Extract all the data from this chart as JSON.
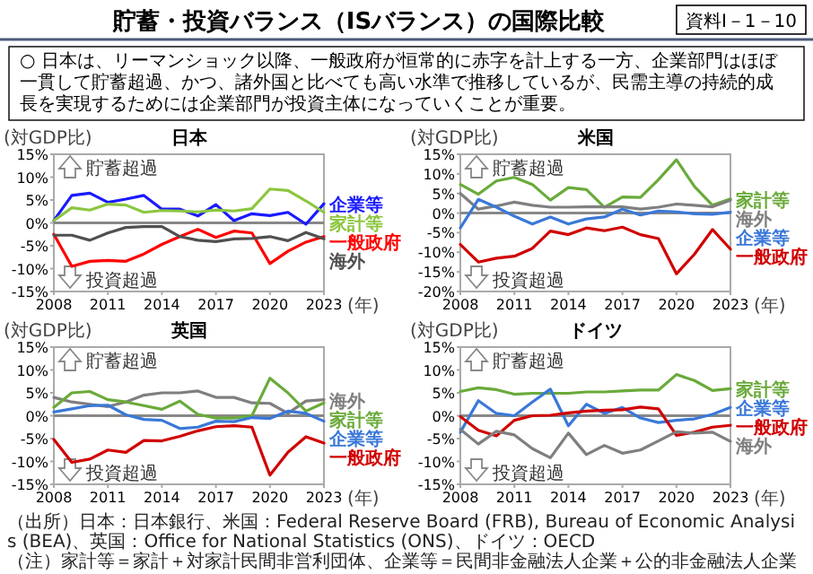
{
  "chart_data": [
    {
      "type": "other",
      "title": "貯蓄・投資バランス（ISバランス）の国際比較",
      "subtitle": "○ 日本は、リーマンショック以降、一般政府が恒常的に赤字を計上する一方、企業部門はほぼ一貫して貯蓄超過、かつ、諸外国と比べても高い水準で推移しているが、民需主導の持続的成長を実現するためには企業部門が投資主体になっていくことが重要。",
      "annotations": [
        "資料Ⅰ－1－10",
        "（出所）日本：日本銀行、米国：Federal Reserve Board (FRB), Bureau of Economic Analysis (BEA)、英国：Office for National Statistics (ONS)、ドイツ：OECD",
        "（注）家計等＝家計＋対家計民間非営利団体、企業等＝民間非金融法人企業＋公的非金融法人企業"
      ]
    },
    {
      "type": "line",
      "title": "日本",
      "ylabel": "(対GDP比)",
      "xlabel": "(年)",
      "annotations": [
        "貯蓄超過",
        "投資超過"
      ],
      "x": [
        2008,
        2009,
        2010,
        2011,
        2012,
        2013,
        2014,
        2015,
        2016,
        2017,
        2018,
        2019,
        2020,
        2021,
        2022,
        2023
      ],
      "xlim": [
        2008,
        2023
      ],
      "xticks": [
        2008,
        2011,
        2014,
        2017,
        2020,
        2023
      ],
      "ylim": [
        -15,
        15
      ],
      "yticks": [
        {
          "value": -15,
          "label": "-15%"
        },
        {
          "value": -10,
          "label": "-10%"
        },
        {
          "value": -5,
          "label": "-5%"
        },
        {
          "value": 0,
          "label": "0%"
        },
        {
          "value": 5,
          "label": "5%"
        },
        {
          "value": 10,
          "label": "10%"
        },
        {
          "value": 15,
          "label": "15%"
        }
      ],
      "series": [
        {
          "name": "企業等",
          "color": "#1a1aff",
          "values": [
            0.5,
            6,
            6.5,
            4.5,
            5.2,
            6,
            3,
            3,
            1.5,
            4,
            0.5,
            2,
            1.6,
            2.3,
            -0.3,
            4.2
          ]
        },
        {
          "name": "家計等",
          "color": "#8cc63f",
          "values": [
            0.5,
            3.3,
            2.8,
            4.1,
            3.9,
            2.3,
            2.7,
            2.6,
            2.4,
            2.8,
            2.6,
            3.1,
            7.4,
            7.1,
            4.8,
            2.3
          ]
        },
        {
          "name": "一般政府",
          "color": "#ff0000",
          "values": [
            -2.5,
            -9.5,
            -8.4,
            -8.2,
            -8.4,
            -6.8,
            -4.7,
            -3,
            -1.4,
            -3.2,
            -1.8,
            -2.2,
            -8.9,
            -6.2,
            -4.2,
            -3
          ]
        },
        {
          "name": "海外",
          "color": "#505050",
          "values": [
            -2.7,
            -2.7,
            -3.8,
            -2.2,
            -1,
            -0.8,
            -0.8,
            -3,
            -3.8,
            -4.1,
            -3.5,
            -3.4,
            -3,
            -3.9,
            -2.1,
            -3.5
          ]
        }
      ]
    },
    {
      "type": "line",
      "title": "米国",
      "ylabel": "(対GDP比)",
      "xlabel": "(年)",
      "annotations": [
        "貯蓄超過",
        "投資超過"
      ],
      "x": [
        2008,
        2009,
        2010,
        2011,
        2012,
        2013,
        2014,
        2015,
        2016,
        2017,
        2018,
        2019,
        2020,
        2021,
        2022,
        2023
      ],
      "xlim": [
        2008,
        2023
      ],
      "xticks": [
        2008,
        2011,
        2014,
        2017,
        2020,
        2023
      ],
      "ylim": [
        -20,
        15
      ],
      "yticks": [
        {
          "value": -20,
          "label": "-20%"
        },
        {
          "value": -15,
          "label": "-15%"
        },
        {
          "value": -10,
          "label": "-10%"
        },
        {
          "value": -5,
          "label": "-5%"
        },
        {
          "value": 0,
          "label": "0%"
        },
        {
          "value": 5,
          "label": "5%"
        },
        {
          "value": 10,
          "label": "10%"
        },
        {
          "value": 15,
          "label": "15%"
        }
      ],
      "series": [
        {
          "name": "家計等",
          "color": "#6aaa3a",
          "values": [
            7.3,
            4.8,
            8.2,
            9.1,
            7.3,
            3.3,
            6.5,
            6,
            1.5,
            4.1,
            4,
            8.5,
            13.6,
            6.8,
            2,
            3.6
          ]
        },
        {
          "name": "海外",
          "color": "#7f7f7f",
          "values": [
            5,
            1,
            1.8,
            2.8,
            2,
            1.5,
            1.5,
            1.6,
            1.6,
            1.6,
            1,
            1.5,
            2.3,
            2,
            1.6,
            3.3
          ]
        },
        {
          "name": "企業等",
          "color": "#3a78d8",
          "values": [
            -3.8,
            3.5,
            1.5,
            -0.8,
            -2.8,
            -1,
            -2.8,
            -1.5,
            -1,
            1,
            -0.5,
            0.5,
            0.3,
            -0.2,
            -0.3,
            0.2
          ]
        },
        {
          "name": "一般政府",
          "color": "#d00000",
          "values": [
            -8,
            -12.5,
            -11.5,
            -11,
            -9,
            -4.6,
            -5.5,
            -3.8,
            -4.5,
            -3.6,
            -5.5,
            -6.5,
            -15.5,
            -10.5,
            -4.2,
            -9.2
          ]
        }
      ]
    },
    {
      "type": "line",
      "title": "英国",
      "ylabel": "(対GDP比)",
      "xlabel": "(年)",
      "annotations": [
        "貯蓄超過",
        "投資超過"
      ],
      "x": [
        2008,
        2009,
        2010,
        2011,
        2012,
        2013,
        2014,
        2015,
        2016,
        2017,
        2018,
        2019,
        2020,
        2021,
        2022,
        2023
      ],
      "xlim": [
        2008,
        2023
      ],
      "xticks": [
        2008,
        2011,
        2014,
        2017,
        2020,
        2023
      ],
      "ylim": [
        -15,
        15
      ],
      "yticks": [
        {
          "value": -15,
          "label": "-15%"
        },
        {
          "value": -10,
          "label": "-10%"
        },
        {
          "value": -5,
          "label": "-5%"
        },
        {
          "value": 0,
          "label": "0%"
        },
        {
          "value": 5,
          "label": "5%"
        },
        {
          "value": 10,
          "label": "10%"
        },
        {
          "value": 15,
          "label": "15%"
        }
      ],
      "series": [
        {
          "name": "海外",
          "color": "#7f7f7f",
          "values": [
            4,
            3,
            2.5,
            2,
            3,
            4.5,
            5,
            5,
            5.4,
            4,
            4,
            2.8,
            2.7,
            0.5,
            3.2,
            3.5
          ]
        },
        {
          "name": "家計等",
          "color": "#6aaa3a",
          "values": [
            1.8,
            5,
            5.3,
            3.5,
            3,
            2.2,
            1.4,
            3.2,
            0.3,
            -0.5,
            -0.5,
            0,
            8.2,
            5,
            1,
            2.8
          ]
        },
        {
          "name": "企業等",
          "color": "#3a78d8",
          "values": [
            0.8,
            1.5,
            2.2,
            2.3,
            0.2,
            -0.8,
            -1,
            -2.8,
            -2.5,
            -1.2,
            -1.3,
            -0.4,
            -0.6,
            1,
            0.5,
            -1.2
          ]
        },
        {
          "name": "一般政府",
          "color": "#d00000",
          "values": [
            -5.2,
            -10.2,
            -9.5,
            -7.5,
            -8,
            -5.4,
            -5.5,
            -4.5,
            -3.3,
            -2.4,
            -2.2,
            -2.5,
            -13,
            -8,
            -4.6,
            -6
          ]
        }
      ]
    },
    {
      "type": "line",
      "title": "ドイツ",
      "ylabel": "(対GDP比)",
      "xlabel": "(年)",
      "annotations": [
        "貯蓄超過",
        "投資超過"
      ],
      "x": [
        2008,
        2009,
        2010,
        2011,
        2012,
        2013,
        2014,
        2015,
        2016,
        2017,
        2018,
        2019,
        2020,
        2021,
        2022,
        2023
      ],
      "xlim": [
        2008,
        2023
      ],
      "xticks": [
        2008,
        2011,
        2014,
        2017,
        2020,
        2023
      ],
      "ylim": [
        -15,
        15
      ],
      "yticks": [
        {
          "value": -15,
          "label": "-15%"
        },
        {
          "value": -10,
          "label": "-10%"
        },
        {
          "value": -5,
          "label": "-5%"
        },
        {
          "value": 0,
          "label": "0%"
        },
        {
          "value": 5,
          "label": "5%"
        },
        {
          "value": 10,
          "label": "10%"
        },
        {
          "value": 15,
          "label": "15%"
        }
      ],
      "series": [
        {
          "name": "家計等",
          "color": "#6aaa3a",
          "values": [
            5.3,
            6.1,
            5.7,
            4.7,
            4.9,
            4.9,
            4.9,
            5.2,
            5.2,
            5.4,
            5.6,
            5.6,
            9,
            7.7,
            5.5,
            5.9
          ]
        },
        {
          "name": "企業等",
          "color": "#3a78d8",
          "values": [
            -3.6,
            3.3,
            0.5,
            0,
            3,
            5.8,
            -2.2,
            2.5,
            0.5,
            1.8,
            -0.5,
            -1.5,
            -1,
            -0.7,
            0.3,
            1.8
          ]
        },
        {
          "name": "一般政府",
          "color": "#d00000",
          "values": [
            -0.2,
            -3.2,
            -4.4,
            -1,
            0,
            0.1,
            0.6,
            1,
            1.2,
            1.3,
            1.9,
            1.5,
            -4.3,
            -3.6,
            -2.5,
            -2.1
          ]
        },
        {
          "name": "海外",
          "color": "#7f7f7f",
          "values": [
            -3,
            -6.2,
            -3.4,
            -4.2,
            -7.2,
            -9.2,
            -3.8,
            -8.5,
            -6.5,
            -8.2,
            -7.5,
            -5.5,
            -3.5,
            -3.8,
            -3.6,
            -5.6
          ]
        }
      ]
    }
  ]
}
